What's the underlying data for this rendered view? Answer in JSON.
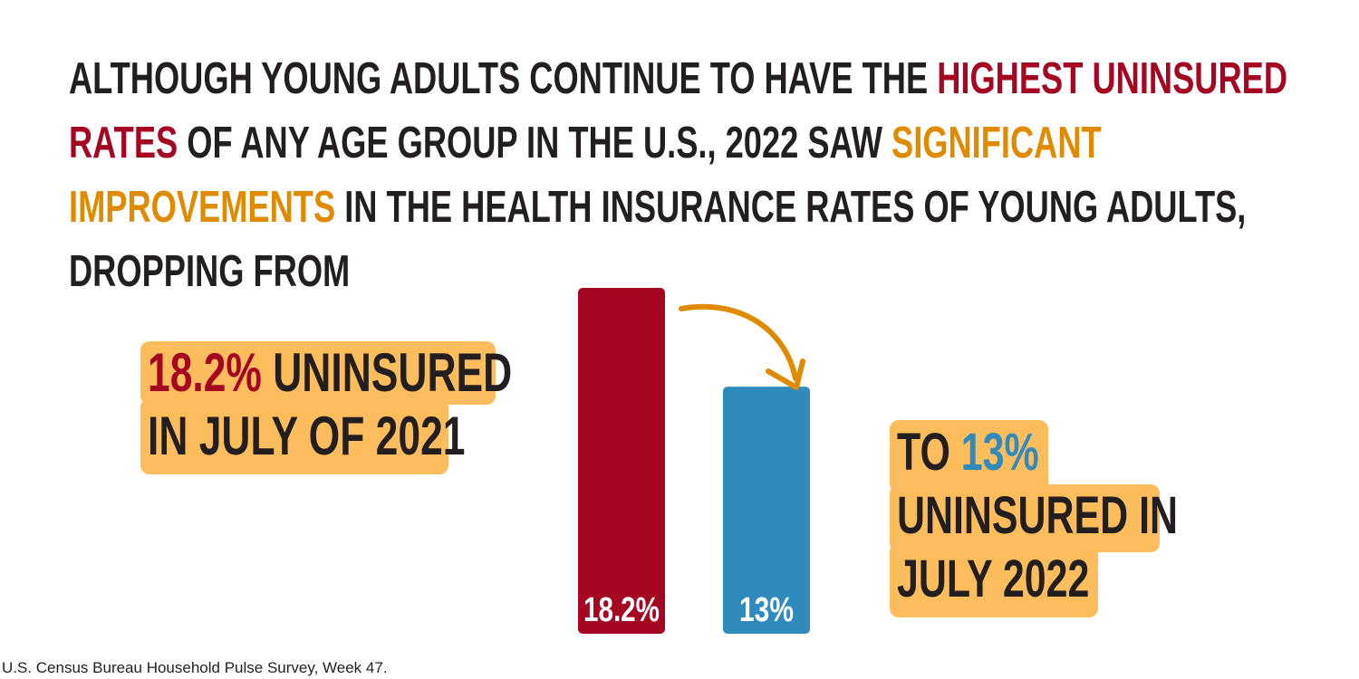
{
  "headline": {
    "line1_a": "ALTHOUGH YOUNG ADULTS CONTINUE TO HAVE THE ",
    "line1_b": "HIGHEST UNINSURED",
    "line2_a": "RATES",
    "line2_b": " OF ANY AGE GROUP IN THE U.S., 2022 SAW ",
    "line2_c": "SIGNIFICANT",
    "line3_a": "IMPROVEMENTS",
    "line3_b": " IN THE HEALTH INSURANCE RATES OF YOUNG ADULTS,",
    "line4": "DROPPING FROM"
  },
  "callout_left": {
    "value": "18.2%",
    "line1_rest": " UNINSURED",
    "line2": "IN JULY OF 2021"
  },
  "callout_right": {
    "line1_a": "TO ",
    "value": "13%",
    "line2": "UNINSURED IN",
    "line3": "JULY 2022"
  },
  "source": "U.S. Census Bureau Household Pulse Survey, Week 47.",
  "colors": {
    "red": "#a50622",
    "blue": "#2f8bbc",
    "orange": "#e08a00",
    "highlight": "#fdbd5c",
    "text": "#231f20"
  },
  "chart_data": {
    "type": "bar",
    "categories": [
      "July 2021",
      "July 2022"
    ],
    "values": [
      18.2,
      13
    ],
    "labels": [
      "18.2%",
      "13%"
    ],
    "bar_colors": [
      "#a50622",
      "#2f8bbc"
    ],
    "ylim": [
      0,
      18.2
    ],
    "grid": false,
    "axes_visible": false
  }
}
